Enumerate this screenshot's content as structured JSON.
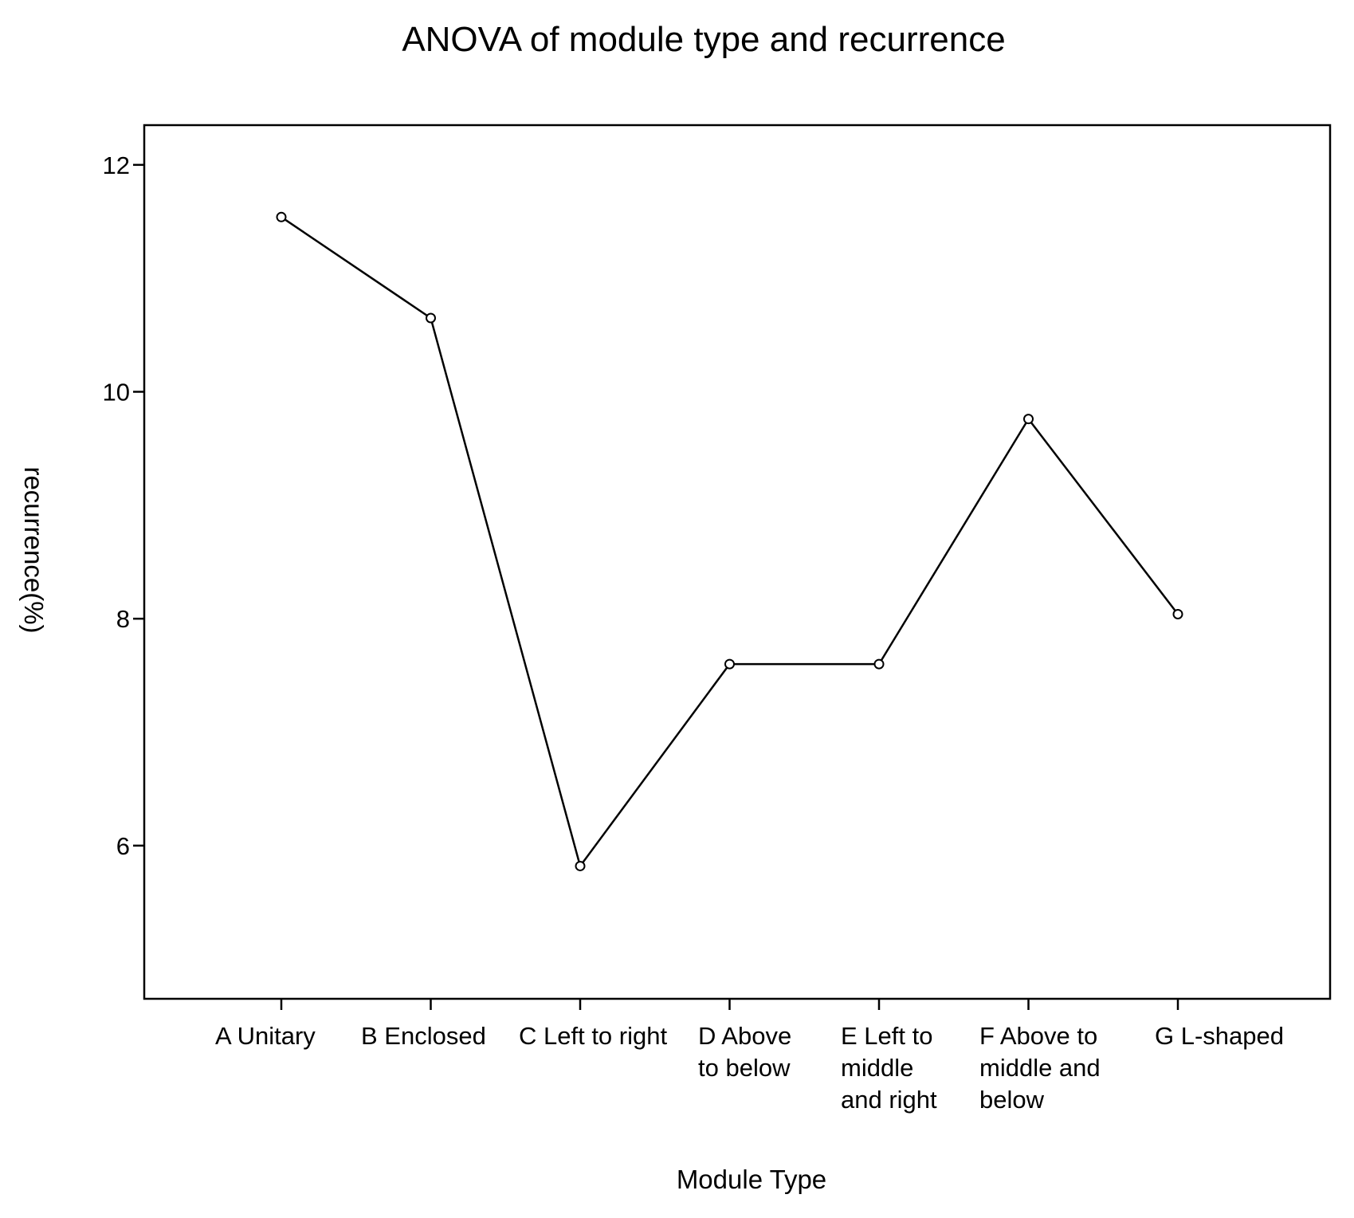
{
  "chart_data": {
    "type": "line",
    "title": "ANOVA of module type and recurrence",
    "xlabel": "Module Type",
    "ylabel": "recurrence(%)",
    "ylim": [
      4.65,
      12.35
    ],
    "yticks": [
      6,
      8,
      10,
      12
    ],
    "grid": false,
    "categories": [
      [
        "A Unitary"
      ],
      [
        "B Enclosed"
      ],
      [
        "C Left to right"
      ],
      [
        "D Above",
        "to below"
      ],
      [
        "E Left to",
        "middle",
        "and right"
      ],
      [
        "F Above to",
        "middle and",
        "below"
      ],
      [
        "G L-shaped"
      ]
    ],
    "series": [
      {
        "values": [
          11.54,
          10.65,
          5.82,
          7.6,
          7.6,
          9.76,
          8.04
        ]
      }
    ]
  }
}
